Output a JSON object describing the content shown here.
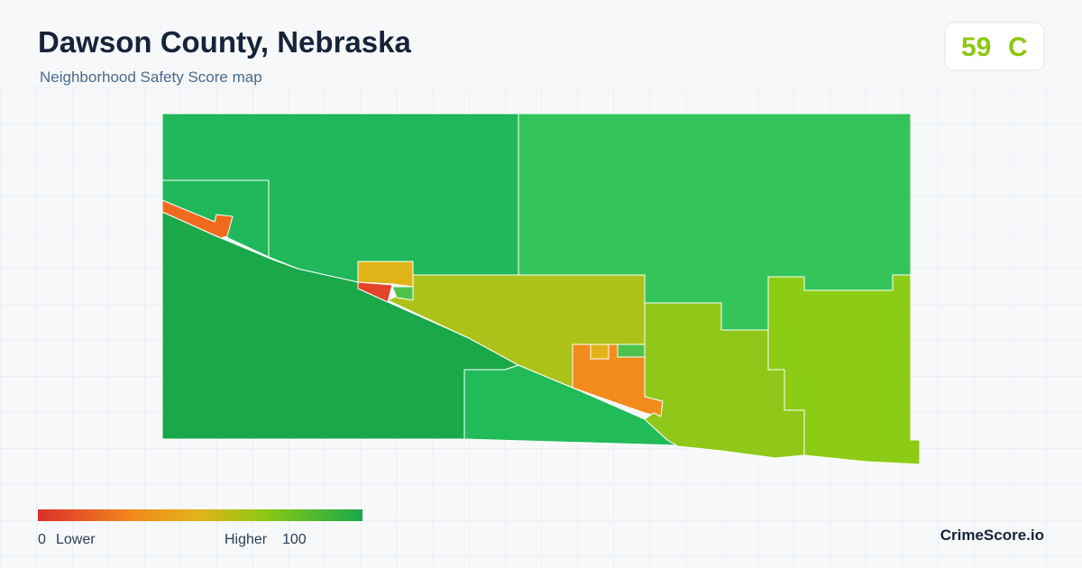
{
  "header": {
    "title": "Dawson County, Nebraska",
    "subtitle": "Neighborhood Safety Score map"
  },
  "score": {
    "value": "59",
    "grade": "C"
  },
  "legend": {
    "min": "0",
    "min_label": "Lower",
    "max_label": "Higher",
    "max": "100"
  },
  "brand": "CrimeScore.io"
}
